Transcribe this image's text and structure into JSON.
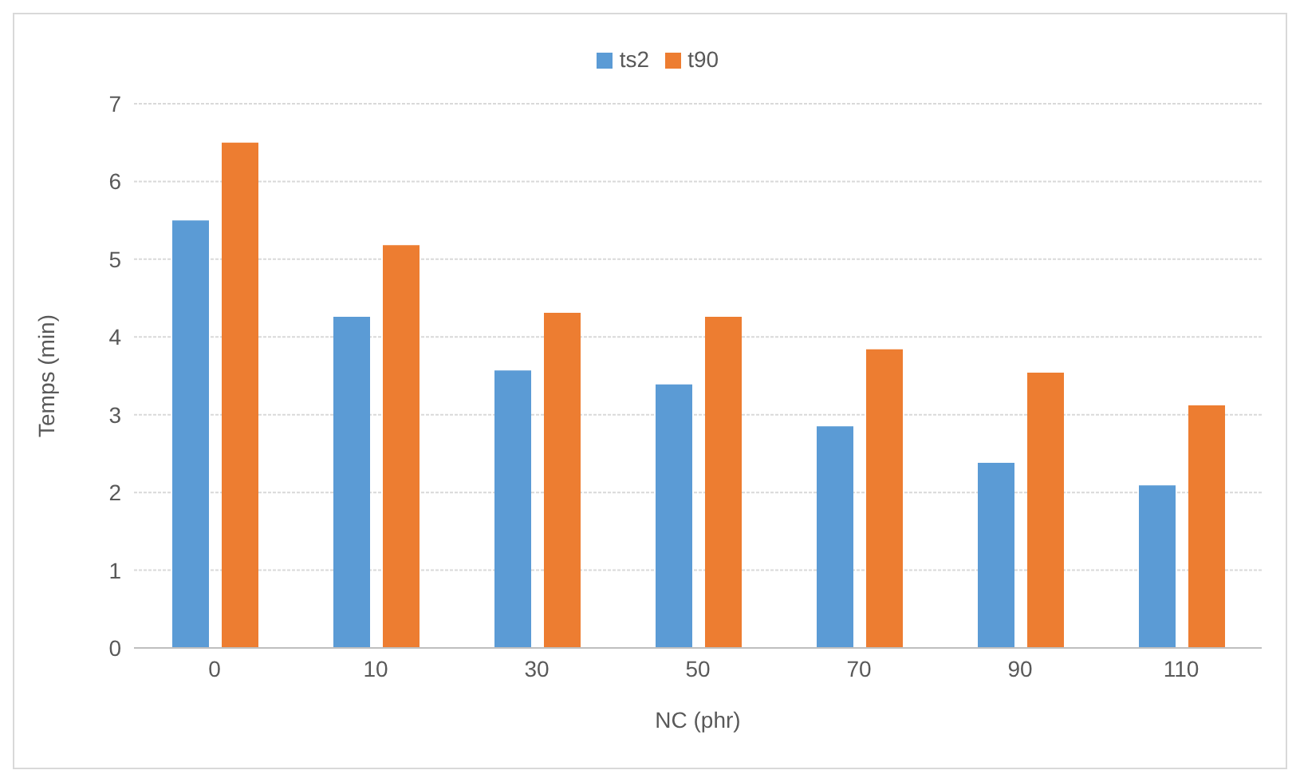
{
  "chart_data": {
    "type": "bar",
    "xlabel": "NC (phr)",
    "ylabel": "Temps (min)",
    "categories": [
      "0",
      "10",
      "30",
      "50",
      "70",
      "90",
      "110"
    ],
    "series": [
      {
        "name": "ts2",
        "color": "#5b9bd5",
        "values": [
          5.5,
          4.26,
          3.57,
          3.39,
          2.85,
          2.38,
          2.09
        ]
      },
      {
        "name": "t90",
        "color": "#ed7d31",
        "values": [
          6.5,
          5.18,
          4.31,
          4.26,
          3.84,
          3.54,
          3.12
        ]
      }
    ],
    "ylim": [
      0,
      7
    ],
    "yticks": [
      0,
      1,
      2,
      3,
      4,
      5,
      6,
      7
    ],
    "grid": "y",
    "legend": "top"
  }
}
